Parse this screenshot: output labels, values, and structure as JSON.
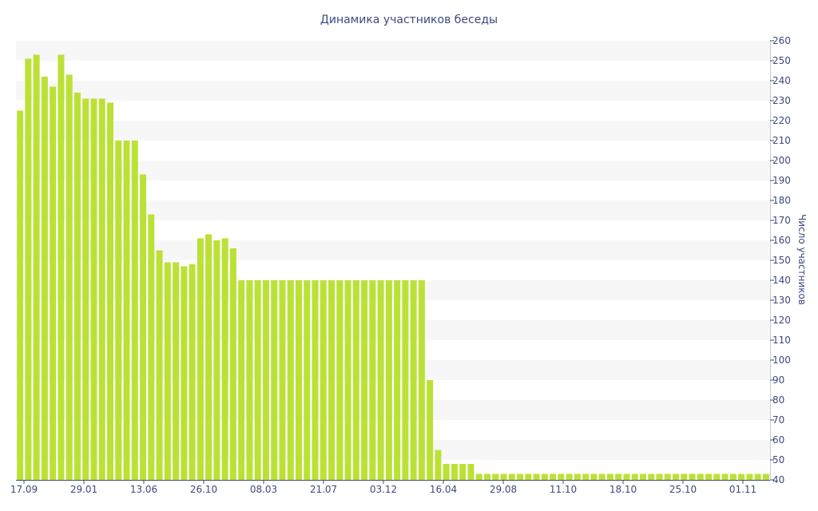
{
  "chart_data": {
    "type": "bar",
    "title": "Динамика участников беседы",
    "ylabel": "Число участников",
    "xlabel": "",
    "ylim": [
      40,
      260
    ],
    "y_ticks": [
      40,
      50,
      60,
      70,
      80,
      90,
      100,
      110,
      120,
      130,
      140,
      150,
      160,
      170,
      180,
      190,
      200,
      210,
      220,
      230,
      240,
      250,
      260
    ],
    "x_tick_labels": [
      "17.09",
      "29.01",
      "13.06",
      "26.10",
      "08.03",
      "21.07",
      "03.12",
      "16.04",
      "29.08",
      "11.10",
      "18.10",
      "25.10",
      "01.11"
    ],
    "y_axis_side": "right",
    "grid": "horizontal bands",
    "colors": {
      "bar": "#bce136",
      "band": "#f7f7f7",
      "text": "#3d4a7a"
    },
    "values": [
      225,
      251,
      253,
      242,
      237,
      253,
      243,
      234,
      231,
      231,
      231,
      229,
      210,
      210,
      210,
      193,
      173,
      155,
      149,
      149,
      147,
      148,
      161,
      163,
      160,
      161,
      156,
      140,
      140,
      140,
      140,
      140,
      140,
      140,
      140,
      140,
      140,
      140,
      140,
      140,
      140,
      140,
      140,
      140,
      140,
      140,
      140,
      140,
      140,
      140,
      90,
      55,
      48,
      48,
      48,
      48,
      43,
      43,
      43,
      43,
      43,
      43,
      43,
      43,
      43,
      43,
      43,
      43,
      43,
      43,
      43,
      43,
      43,
      43,
      43,
      43,
      43,
      43,
      43,
      43,
      43,
      43,
      43,
      43,
      43,
      43,
      43,
      43,
      43,
      43,
      43,
      43
    ]
  }
}
